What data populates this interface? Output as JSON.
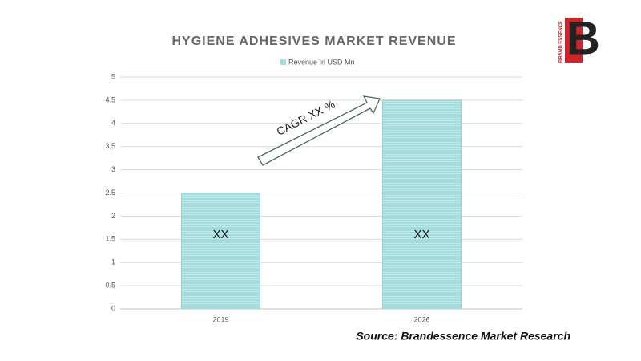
{
  "chart_data": {
    "type": "bar",
    "title": "HYGIENE ADHESIVES MARKET REVENUE",
    "categories": [
      "2019",
      "2026"
    ],
    "series": [
      {
        "name": "Revenue In USD Mn",
        "color": "#a3dcdc",
        "values": [
          2.5,
          4.5
        ],
        "value_labels": [
          "XX",
          "XX"
        ]
      }
    ],
    "ylim": [
      0,
      5
    ],
    "yticks": [
      0,
      0.5,
      1,
      1.5,
      2,
      2.5,
      3,
      3.5,
      4,
      4.5,
      5
    ],
    "grid": true,
    "legend": "top",
    "annotation": "CAGR XX %",
    "source": "Source: Brandessence Market Research",
    "logo": {
      "letter": "B",
      "name": "BRAND ESSENCE"
    }
  }
}
